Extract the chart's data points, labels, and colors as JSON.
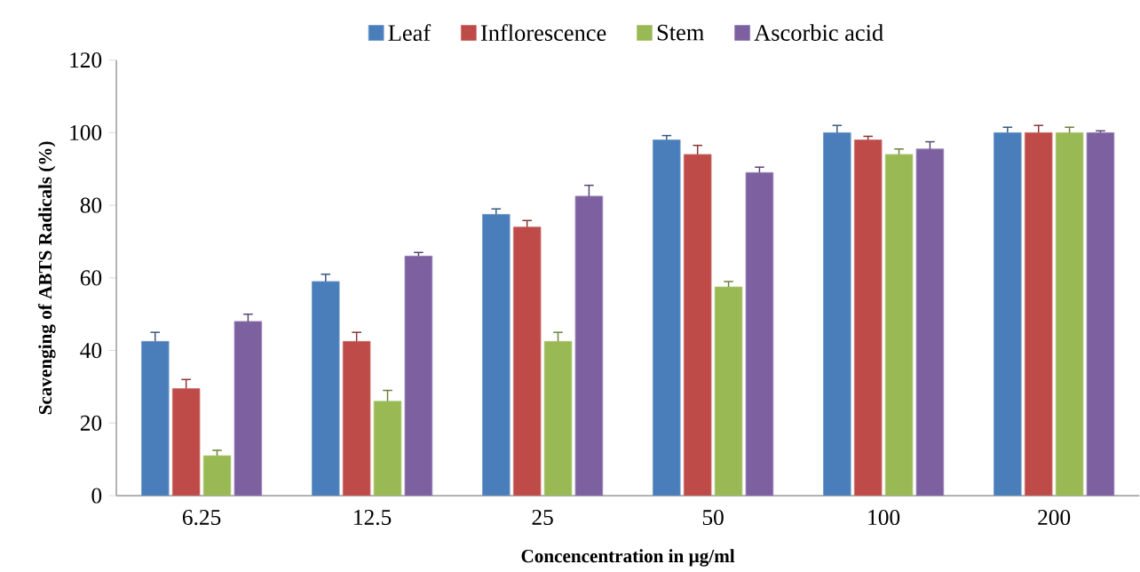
{
  "chart_data": {
    "type": "bar",
    "xlabel": "Concencentration in µg/ml",
    "ylabel": "Scavenging of ABTS Radicals (%)",
    "categories": [
      "6.25",
      "12.5",
      "25",
      "50",
      "100",
      "200"
    ],
    "series": [
      {
        "name": "Leaf",
        "color": "#4a7ebb",
        "values": [
          42.5,
          59,
          77.5,
          98,
          100,
          100
        ],
        "errors": [
          2.5,
          2,
          1.5,
          1.2,
          2,
          1.5
        ]
      },
      {
        "name": "Inflorescence",
        "color": "#be4b48",
        "values": [
          29.5,
          42.5,
          74,
          94,
          98,
          100
        ],
        "errors": [
          2.5,
          2.5,
          1.8,
          2.5,
          1,
          2
        ]
      },
      {
        "name": "Stem",
        "color": "#98b954",
        "values": [
          11,
          26,
          42.5,
          57.5,
          94,
          100
        ],
        "errors": [
          1.5,
          3,
          2.5,
          1.5,
          1.5,
          1.5
        ]
      },
      {
        "name": "Ascorbic acid",
        "color": "#7d60a0",
        "values": [
          48,
          66,
          82.5,
          89,
          95.5,
          100
        ],
        "errors": [
          2,
          1,
          3,
          1.5,
          2,
          0.5
        ]
      }
    ],
    "ylim": [
      0,
      120
    ],
    "yticks": [
      0,
      20,
      40,
      60,
      80,
      100,
      120
    ],
    "legend": "top",
    "grid": false
  }
}
